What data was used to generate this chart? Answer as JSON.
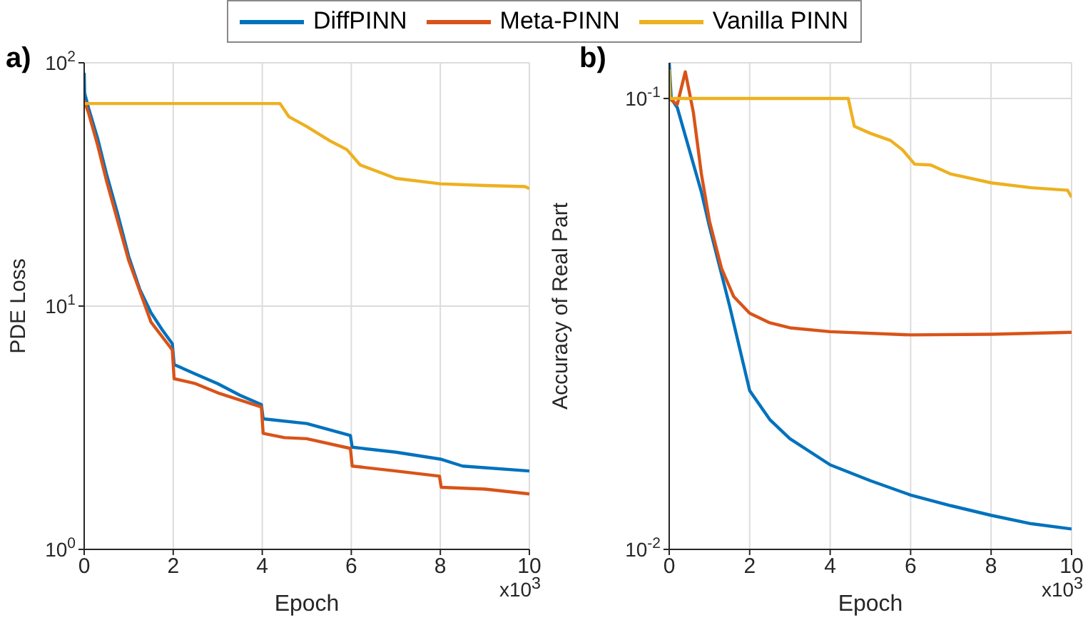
{
  "chart_data": [
    {
      "type": "line",
      "title": "a)",
      "xlabel": "Epoch",
      "ylabel": "PDE Loss",
      "annotations": [
        "x10$^{3}$"
      ],
      "log": "y",
      "grid": true,
      "legend": "top",
      "marker": "none",
      "line_style": "solid",
      "xlim": [
        0,
        10
      ],
      "xticks": [
        0,
        2,
        4,
        6,
        8,
        10
      ],
      "ylim": [
        1,
        100
      ],
      "yticks": [
        {
          "value": 1,
          "label": "10$^{0}$"
        },
        {
          "value": 10,
          "label": "10$^{1}$"
        },
        {
          "value": 100,
          "label": "10$^{2}$"
        }
      ],
      "series": [
        {
          "name": "DiffPINN",
          "color": "#0072bd",
          "x": [
            0,
            0.01,
            0.1,
            0.3,
            0.5,
            0.75,
            1,
            1.25,
            1.5,
            1.75,
            1.98,
            2.02,
            2.5,
            3,
            3.5,
            3.98,
            4.02,
            5,
            5.98,
            6.02,
            7,
            8,
            8.5,
            10
          ],
          "values": [
            91,
            75,
            65,
            49,
            35,
            24,
            16,
            11.7,
            9.4,
            8,
            7,
            5.75,
            5.26,
            4.8,
            4.3,
            3.94,
            3.44,
            3.29,
            2.94,
            2.63,
            2.51,
            2.35,
            2.2,
            2.1
          ]
        },
        {
          "name": "Meta-PINN",
          "color": "#d95319",
          "x": [
            0,
            0.1,
            0.3,
            0.5,
            1,
            1.5,
            1.98,
            2.02,
            2.5,
            3,
            3.98,
            4.02,
            4.5,
            5,
            5.98,
            6.02,
            7,
            7.98,
            8.02,
            9,
            10
          ],
          "values": [
            70,
            62,
            46,
            32.8,
            15.4,
            8.6,
            6.6,
            5.03,
            4.8,
            4.4,
            3.85,
            3,
            2.88,
            2.85,
            2.6,
            2.2,
            2.1,
            2,
            1.8,
            1.77,
            1.69
          ]
        },
        {
          "name": "Vanilla PINN",
          "color": "#edb120",
          "x": [
            0,
            4.4,
            4.6,
            5,
            5.5,
            5.9,
            6.2,
            7,
            8,
            9,
            9.9,
            10
          ],
          "values": [
            68,
            68,
            60,
            54.7,
            48,
            44,
            38,
            33.5,
            31.8,
            31.3,
            31,
            30.4
          ]
        }
      ]
    },
    {
      "type": "line",
      "title": "b)",
      "xlabel": "Epoch",
      "ylabel": "Accuracy of Real Part",
      "annotations": [
        "x10$^{3}$"
      ],
      "log": "y",
      "grid": true,
      "marker": "none",
      "line_style": "solid",
      "xlim": [
        0,
        10
      ],
      "xticks": [
        0,
        2,
        4,
        6,
        8,
        10
      ],
      "ylim": [
        0.01,
        0.12
      ],
      "yticks": [
        {
          "value": 0.01,
          "label": "10$^{-2}$"
        },
        {
          "value": 0.1,
          "label": "10$^{-1}$"
        }
      ],
      "series": [
        {
          "color": "#0072bd",
          "x": [
            0,
            0.05,
            0.2,
            0.5,
            0.8,
            1,
            1.5,
            2,
            2.5,
            3,
            4,
            5,
            6,
            7,
            8,
            9,
            10
          ],
          "values": [
            0.12,
            0.1,
            0.0955,
            0.077,
            0.062,
            0.052,
            0.0347,
            0.0225,
            0.0194,
            0.0176,
            0.0154,
            0.0142,
            0.0132,
            0.0125,
            0.0119,
            0.0114,
            0.0111
          ]
        },
        {
          "color": "#d95319",
          "x": [
            0,
            0.2,
            0.4,
            0.6,
            0.8,
            1,
            1.3,
            1.6,
            2,
            2.5,
            3,
            4,
            6,
            8,
            10
          ],
          "values": [
            0.1,
            0.097,
            0.1146,
            0.0932,
            0.068,
            0.0535,
            0.042,
            0.0364,
            0.0334,
            0.0318,
            0.031,
            0.0304,
            0.0299,
            0.03,
            0.0303
          ]
        },
        {
          "color": "#edb120",
          "x": [
            0,
            0.02,
            4.45,
            4.6,
            5,
            5.5,
            5.8,
            6.1,
            6.5,
            7,
            8,
            9,
            9.9,
            10
          ],
          "values": [
            0.116,
            0.1,
            0.1,
            0.0868,
            0.0837,
            0.0807,
            0.0769,
            0.0715,
            0.0712,
            0.068,
            0.065,
            0.0634,
            0.0626,
            0.0604
          ]
        }
      ]
    }
  ]
}
